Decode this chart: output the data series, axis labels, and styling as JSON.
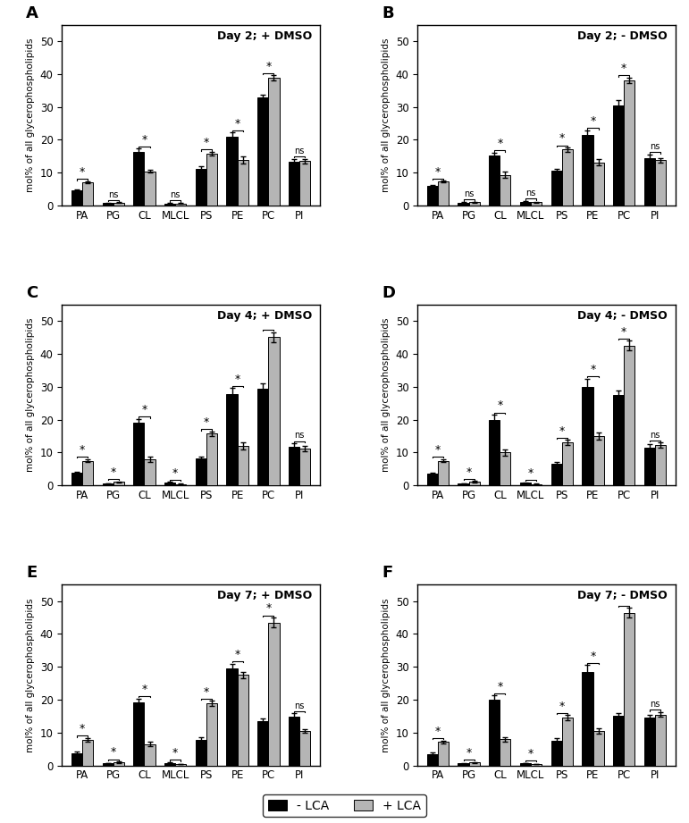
{
  "panels": [
    {
      "label": "A",
      "title": "Day 2; + DMSO",
      "categories": [
        "PA",
        "PG",
        "CL",
        "MLCL",
        "PS",
        "PE",
        "PC",
        "PI"
      ],
      "black": [
        4.5,
        0.7,
        16.3,
        0.6,
        11.2,
        21.0,
        32.8,
        13.3
      ],
      "black_err": [
        0.4,
        0.1,
        1.0,
        0.1,
        0.7,
        1.2,
        1.0,
        0.8
      ],
      "gray": [
        7.0,
        0.8,
        10.3,
        0.6,
        15.7,
        13.8,
        38.8,
        13.5
      ],
      "gray_err": [
        0.3,
        0.15,
        0.4,
        0.15,
        0.6,
        1.2,
        0.8,
        0.7
      ],
      "sig": [
        "*",
        "ns",
        "*",
        "ns",
        "*",
        "*",
        "*",
        "ns"
      ]
    },
    {
      "label": "B",
      "title": "Day 2; - DMSO",
      "categories": [
        "PA",
        "PG",
        "CL",
        "MLCL",
        "PS",
        "PE",
        "PC",
        "PI"
      ],
      "black": [
        5.8,
        0.8,
        15.2,
        1.1,
        10.5,
        21.5,
        30.5,
        14.5
      ],
      "black_err": [
        0.4,
        0.1,
        0.8,
        0.2,
        0.7,
        1.3,
        1.5,
        1.0
      ],
      "gray": [
        7.2,
        0.9,
        9.3,
        0.9,
        17.0,
        13.1,
        38.0,
        13.8
      ],
      "gray_err": [
        0.3,
        0.15,
        1.0,
        0.2,
        0.6,
        1.0,
        0.9,
        0.7
      ],
      "sig": [
        "*",
        "ns",
        "*",
        "ns",
        "*",
        "*",
        "*",
        "ns"
      ]
    },
    {
      "label": "C",
      "title": "Day 4; + DMSO",
      "categories": [
        "PA",
        "PG",
        "CL",
        "MLCL",
        "PS",
        "PE",
        "PC",
        "PI"
      ],
      "black": [
        3.8,
        0.6,
        19.0,
        0.9,
        8.1,
        27.8,
        29.5,
        11.8
      ],
      "black_err": [
        0.3,
        0.1,
        1.2,
        0.15,
        0.6,
        1.8,
        1.5,
        1.0
      ],
      "gray": [
        7.5,
        1.0,
        7.9,
        0.4,
        15.7,
        12.0,
        45.2,
        11.2
      ],
      "gray_err": [
        0.5,
        0.2,
        0.8,
        0.1,
        0.7,
        1.2,
        1.5,
        0.7
      ],
      "sig": [
        "*",
        "*",
        "*",
        "*",
        "*",
        "*",
        "*",
        "ns"
      ]
    },
    {
      "label": "D",
      "title": "Day 4; - DMSO",
      "categories": [
        "PA",
        "PG",
        "CL",
        "MLCL",
        "PS",
        "PE",
        "PC",
        "PI"
      ],
      "black": [
        3.5,
        0.6,
        20.0,
        0.8,
        6.5,
        30.0,
        27.5,
        11.5
      ],
      "black_err": [
        0.4,
        0.1,
        1.5,
        0.15,
        0.6,
        2.5,
        1.5,
        1.0
      ],
      "gray": [
        7.5,
        1.1,
        10.0,
        0.4,
        13.0,
        15.0,
        42.5,
        12.2
      ],
      "gray_err": [
        0.5,
        0.2,
        1.0,
        0.1,
        0.8,
        1.2,
        1.5,
        0.8
      ],
      "sig": [
        "*",
        "*",
        "*",
        "*",
        "*",
        "*",
        "*",
        "ns"
      ]
    },
    {
      "label": "E",
      "title": "Day 7; + DMSO",
      "categories": [
        "PA",
        "PG",
        "CL",
        "MLCL",
        "PS",
        "PE",
        "PC",
        "PI"
      ],
      "black": [
        3.8,
        0.7,
        19.2,
        0.8,
        7.8,
        29.5,
        13.5,
        14.8
      ],
      "black_err": [
        0.3,
        0.1,
        1.2,
        0.15,
        0.8,
        1.5,
        0.9,
        1.0
      ],
      "gray": [
        7.8,
        1.0,
        6.5,
        0.4,
        18.8,
        27.5,
        43.5,
        10.5
      ],
      "gray_err": [
        0.5,
        0.2,
        0.7,
        0.1,
        0.8,
        1.0,
        1.5,
        0.5
      ],
      "sig": [
        "*",
        "*",
        "*",
        "*",
        "*",
        "*",
        "*",
        "ns"
      ]
    },
    {
      "label": "F",
      "title": "Day 7; - DMSO",
      "categories": [
        "PA",
        "PG",
        "CL",
        "MLCL",
        "PS",
        "PE",
        "PC",
        "PI"
      ],
      "black": [
        3.5,
        0.6,
        20.0,
        0.7,
        7.5,
        28.5,
        15.0,
        14.5
      ],
      "black_err": [
        0.4,
        0.1,
        1.3,
        0.1,
        0.7,
        2.0,
        1.0,
        1.0
      ],
      "gray": [
        7.2,
        0.9,
        8.0,
        0.4,
        14.5,
        10.5,
        46.5,
        15.5
      ],
      "gray_err": [
        0.4,
        0.15,
        0.7,
        0.1,
        0.8,
        0.8,
        1.5,
        0.7
      ],
      "sig": [
        "*",
        "*",
        "*",
        "*",
        "*",
        "*",
        "*",
        "ns"
      ]
    }
  ],
  "ylim": [
    0,
    55
  ],
  "yticks": [
    0,
    10,
    20,
    30,
    40,
    50
  ],
  "ylabel": "mol% of all glycerophospholipids",
  "bar_width": 0.35,
  "black_color": "#000000",
  "gray_color": "#b5b5b5",
  "legend_labels": [
    "- LCA",
    "+ LCA"
  ],
  "hspace": 0.55,
  "wspace": 0.38
}
